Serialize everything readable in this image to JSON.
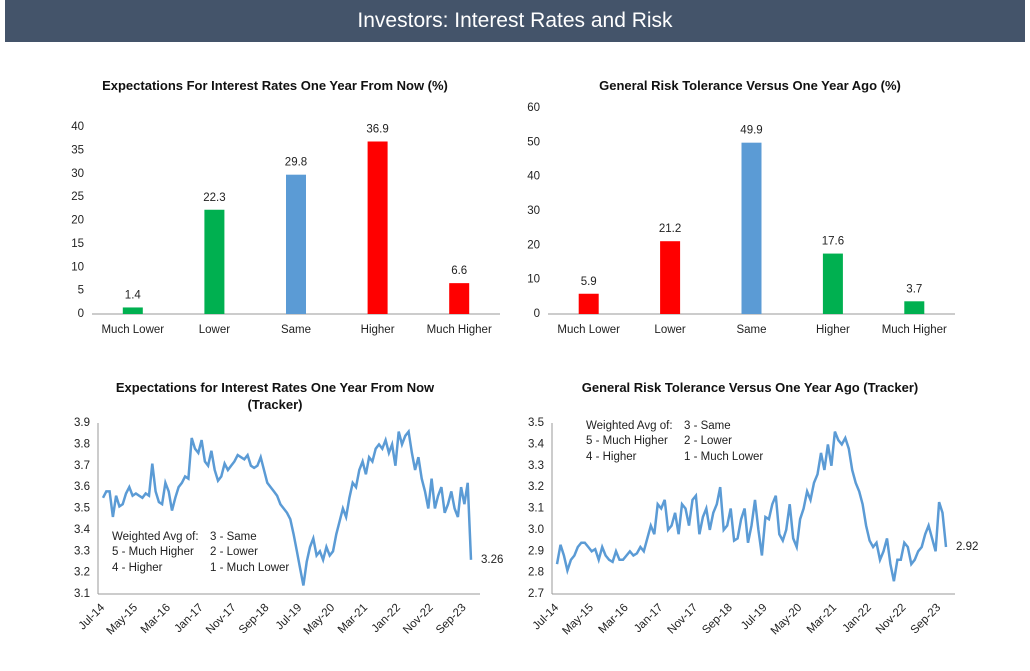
{
  "header": {
    "title": "Investors: Interest Rates and Risk"
  },
  "chart_data": [
    {
      "type": "bar",
      "title": "Expectations For Interest Rates One Year From Now (%)",
      "categories": [
        "Much Lower",
        "Lower",
        "Same",
        "Higher",
        "Much Higher"
      ],
      "values": [
        1.4,
        22.3,
        29.8,
        36.9,
        6.6
      ],
      "colors": [
        "#00b050",
        "#00b050",
        "#5b9bd5",
        "#ff0000",
        "#ff0000"
      ],
      "ylim": [
        0,
        40
      ],
      "yticks": [
        0,
        5,
        10,
        15,
        20,
        25,
        30,
        35,
        40
      ],
      "grid": false
    },
    {
      "type": "bar",
      "title": "General Risk Tolerance Versus One Year Ago (%)",
      "categories": [
        "Much Lower",
        "Lower",
        "Same",
        "Higher",
        "Much Higher"
      ],
      "values": [
        5.9,
        21.2,
        49.9,
        17.6,
        3.7
      ],
      "colors": [
        "#ff0000",
        "#ff0000",
        "#5b9bd5",
        "#00b050",
        "#00b050"
      ],
      "ylim": [
        0,
        60
      ],
      "yticks": [
        0,
        10,
        20,
        30,
        40,
        50,
        60
      ],
      "grid": false
    },
    {
      "type": "line",
      "title": "Expectations for Interest Rates One Year From Now (Tracker)",
      "categories": [
        "Jul-14",
        null,
        null,
        null,
        null,
        null,
        null,
        null,
        null,
        null,
        "May-15",
        null,
        null,
        null,
        null,
        null,
        null,
        null,
        null,
        null,
        "Mar-16",
        null,
        null,
        null,
        null,
        null,
        null,
        null,
        null,
        null,
        "Jan-17",
        null,
        null,
        null,
        null,
        null,
        null,
        null,
        null,
        null,
        "Nov-17",
        null,
        null,
        null,
        null,
        null,
        null,
        null,
        null,
        null,
        "Sep-18",
        null,
        null,
        null,
        null,
        null,
        null,
        null,
        null,
        null,
        "Jul-19",
        null,
        null,
        null,
        null,
        null,
        null,
        null,
        null,
        null,
        "May-20",
        null,
        null,
        null,
        null,
        null,
        null,
        null,
        null,
        null,
        "Mar-21",
        null,
        null,
        null,
        null,
        null,
        null,
        null,
        null,
        null,
        "Jan-22",
        null,
        null,
        null,
        null,
        null,
        null,
        null,
        null,
        null,
        "Nov-22",
        null,
        null,
        null,
        null,
        null,
        null,
        null,
        null,
        null,
        "Sep-23",
        null,
        null
      ],
      "values": [
        3.55,
        3.58,
        3.58,
        3.46,
        3.56,
        3.51,
        3.52,
        3.57,
        3.6,
        3.56,
        3.57,
        3.56,
        3.55,
        3.57,
        3.56,
        3.71,
        3.58,
        3.53,
        3.52,
        3.62,
        3.58,
        3.49,
        3.55,
        3.6,
        3.62,
        3.65,
        3.64,
        3.83,
        3.78,
        3.76,
        3.82,
        3.72,
        3.7,
        3.77,
        3.68,
        3.63,
        3.65,
        3.71,
        3.68,
        3.7,
        3.72,
        3.75,
        3.74,
        3.73,
        3.75,
        3.7,
        3.69,
        3.7,
        3.74,
        3.68,
        3.62,
        3.6,
        3.58,
        3.56,
        3.52,
        3.5,
        3.48,
        3.45,
        3.38,
        3.3,
        3.22,
        3.14,
        3.25,
        3.32,
        3.36,
        3.28,
        3.3,
        3.26,
        3.32,
        3.28,
        3.3,
        3.38,
        3.44,
        3.5,
        3.46,
        3.55,
        3.62,
        3.6,
        3.68,
        3.72,
        3.66,
        3.74,
        3.72,
        3.78,
        3.8,
        3.78,
        3.82,
        3.76,
        3.8,
        3.7,
        3.86,
        3.8,
        3.84,
        3.86,
        3.76,
        3.68,
        3.74,
        3.64,
        3.58,
        3.5,
        3.64,
        3.5,
        3.56,
        3.6,
        3.48,
        3.52,
        3.58,
        3.5,
        3.46,
        3.6,
        3.52,
        3.62,
        3.26
      ],
      "color": "#5b9bd5",
      "ylim": [
        3.1,
        3.9
      ],
      "yticks": [
        3.1,
        3.2,
        3.3,
        3.4,
        3.5,
        3.6,
        3.7,
        3.8,
        3.9
      ],
      "grid": false,
      "annotations": [
        "Weighted Avg of:",
        "3 - Same",
        "5 - Much Higher",
        "2 - Lower",
        "4 - Higher",
        "1 - Much Lower"
      ]
    },
    {
      "type": "line",
      "title": "General Risk Tolerance Versus One Year Ago (Tracker)",
      "categories": [
        "Jul-14",
        null,
        null,
        null,
        null,
        null,
        null,
        null,
        null,
        null,
        "May-15",
        null,
        null,
        null,
        null,
        null,
        null,
        null,
        null,
        null,
        "Mar-16",
        null,
        null,
        null,
        null,
        null,
        null,
        null,
        null,
        null,
        "Jan-17",
        null,
        null,
        null,
        null,
        null,
        null,
        null,
        null,
        null,
        "Nov-17",
        null,
        null,
        null,
        null,
        null,
        null,
        null,
        null,
        null,
        "Sep-18",
        null,
        null,
        null,
        null,
        null,
        null,
        null,
        null,
        null,
        "Jul-19",
        null,
        null,
        null,
        null,
        null,
        null,
        null,
        null,
        null,
        "May-20",
        null,
        null,
        null,
        null,
        null,
        null,
        null,
        null,
        null,
        "Mar-21",
        null,
        null,
        null,
        null,
        null,
        null,
        null,
        null,
        null,
        "Jan-22",
        null,
        null,
        null,
        null,
        null,
        null,
        null,
        null,
        null,
        "Nov-22",
        null,
        null,
        null,
        null,
        null,
        null,
        null,
        null,
        null,
        "Sep-23",
        null,
        null
      ],
      "values": [
        2.84,
        2.93,
        2.88,
        2.81,
        2.86,
        2.88,
        2.92,
        2.94,
        2.94,
        2.92,
        2.9,
        2.91,
        2.86,
        2.92,
        2.88,
        2.86,
        2.85,
        2.9,
        2.86,
        2.86,
        2.88,
        2.9,
        2.88,
        2.89,
        2.92,
        2.9,
        2.96,
        3.02,
        2.98,
        3.12,
        3.1,
        3.14,
        3.0,
        3.02,
        3.08,
        2.98,
        3.12,
        3.1,
        3.02,
        3.14,
        3.16,
        2.98,
        3.06,
        3.1,
        3.0,
        3.08,
        3.12,
        3.2,
        3.0,
        3.02,
        3.1,
        2.95,
        2.96,
        3.05,
        3.1,
        2.94,
        3.02,
        3.14,
        3.0,
        2.88,
        3.06,
        3.05,
        3.12,
        3.16,
        2.98,
        2.95,
        3.0,
        3.12,
        2.96,
        2.92,
        3.05,
        3.1,
        3.18,
        3.14,
        3.22,
        3.26,
        3.36,
        3.28,
        3.4,
        3.3,
        3.46,
        3.42,
        3.4,
        3.43,
        3.38,
        3.28,
        3.22,
        3.18,
        3.12,
        3.02,
        2.95,
        2.92,
        2.94,
        2.86,
        2.9,
        2.96,
        2.84,
        2.76,
        2.86,
        2.86,
        2.94,
        2.92,
        2.84,
        2.86,
        2.9,
        2.92,
        2.98,
        3.02,
        2.96,
        2.9,
        3.13,
        3.08,
        2.92
      ],
      "color": "#5b9bd5",
      "ylim": [
        2.7,
        3.5
      ],
      "yticks": [
        2.7,
        2.8,
        2.9,
        {
          "value": 3.0,
          "label": "3.0"
        },
        3.1,
        3.2,
        3.3,
        3.4,
        3.5
      ],
      "grid": false,
      "annotations": [
        "Weighted Avg of:",
        "3 - Same",
        "5 - Much Higher",
        "2 - Lower",
        "4 - Higher",
        "1 - Much Lower"
      ]
    }
  ]
}
